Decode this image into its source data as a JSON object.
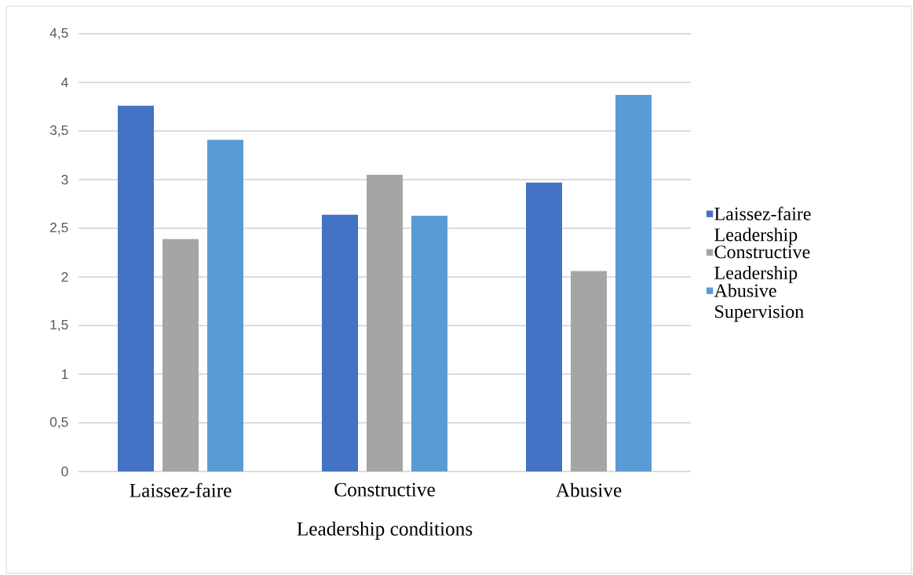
{
  "chart_data": {
    "type": "bar",
    "xlabel": "Leadership conditions",
    "categories": [
      "Laissez-faire",
      "Constructive",
      "Abusive"
    ],
    "series": [
      {
        "name": "Laissez-faire Leadership",
        "color": "#4472c4",
        "values": [
          3.76,
          2.64,
          2.97
        ]
      },
      {
        "name": "Constructive Leadership",
        "color": "#a5a5a5",
        "values": [
          2.39,
          3.05,
          2.06
        ]
      },
      {
        "name": "Abusive Supervision",
        "color": "#5b9bd5",
        "values": [
          3.41,
          2.63,
          3.87
        ]
      }
    ],
    "ylim": [
      0,
      4.5
    ],
    "yticks": [
      0,
      {
        "value": 0.5,
        "label": "0,5"
      },
      1,
      {
        "value": 1.5,
        "label": "1,5"
      },
      2,
      {
        "value": 2.5,
        "label": "2,5"
      },
      3,
      {
        "value": 3.5,
        "label": "3,5"
      },
      4,
      {
        "value": 4.5,
        "label": "4,5"
      }
    ],
    "grid": "y",
    "legend": "right"
  }
}
